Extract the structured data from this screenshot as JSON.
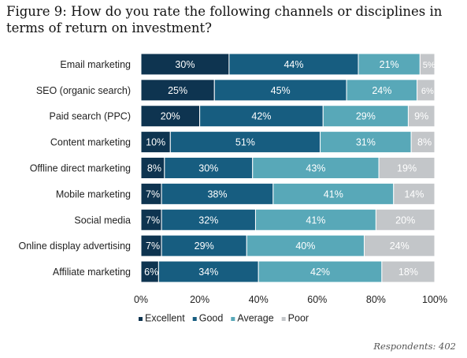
{
  "title": "Figure 9: How do you rate the following channels or disciplines in terms of return on investment?",
  "footnote": "Respondents: 402",
  "chart_data": {
    "type": "bar",
    "orientation": "horizontal",
    "stacked": true,
    "categories": [
      "Email marketing",
      "SEO (organic search)",
      "Paid search (PPC)",
      "Content marketing",
      "Offline direct marketing",
      "Mobile marketing",
      "Social media",
      "Online display advertising",
      "Affiliate marketing"
    ],
    "series": [
      {
        "name": "Excellent",
        "color": "#0e3450",
        "values": [
          30,
          25,
          20,
          10,
          8,
          7,
          7,
          7,
          6
        ]
      },
      {
        "name": "Good",
        "color": "#175d80",
        "values": [
          44,
          45,
          42,
          51,
          30,
          38,
          32,
          29,
          34
        ]
      },
      {
        "name": "Average",
        "color": "#58a8b8",
        "values": [
          21,
          24,
          29,
          31,
          43,
          41,
          41,
          40,
          42
        ]
      },
      {
        "name": "Poor",
        "color": "#c3c6c9",
        "values": [
          5,
          6,
          9,
          8,
          19,
          14,
          20,
          24,
          18
        ]
      }
    ],
    "x_ticks": [
      "0%",
      "20%",
      "40%",
      "60%",
      "80%",
      "100%"
    ],
    "xlim": [
      0,
      100
    ],
    "grid": false,
    "legend_position": "bottom"
  }
}
